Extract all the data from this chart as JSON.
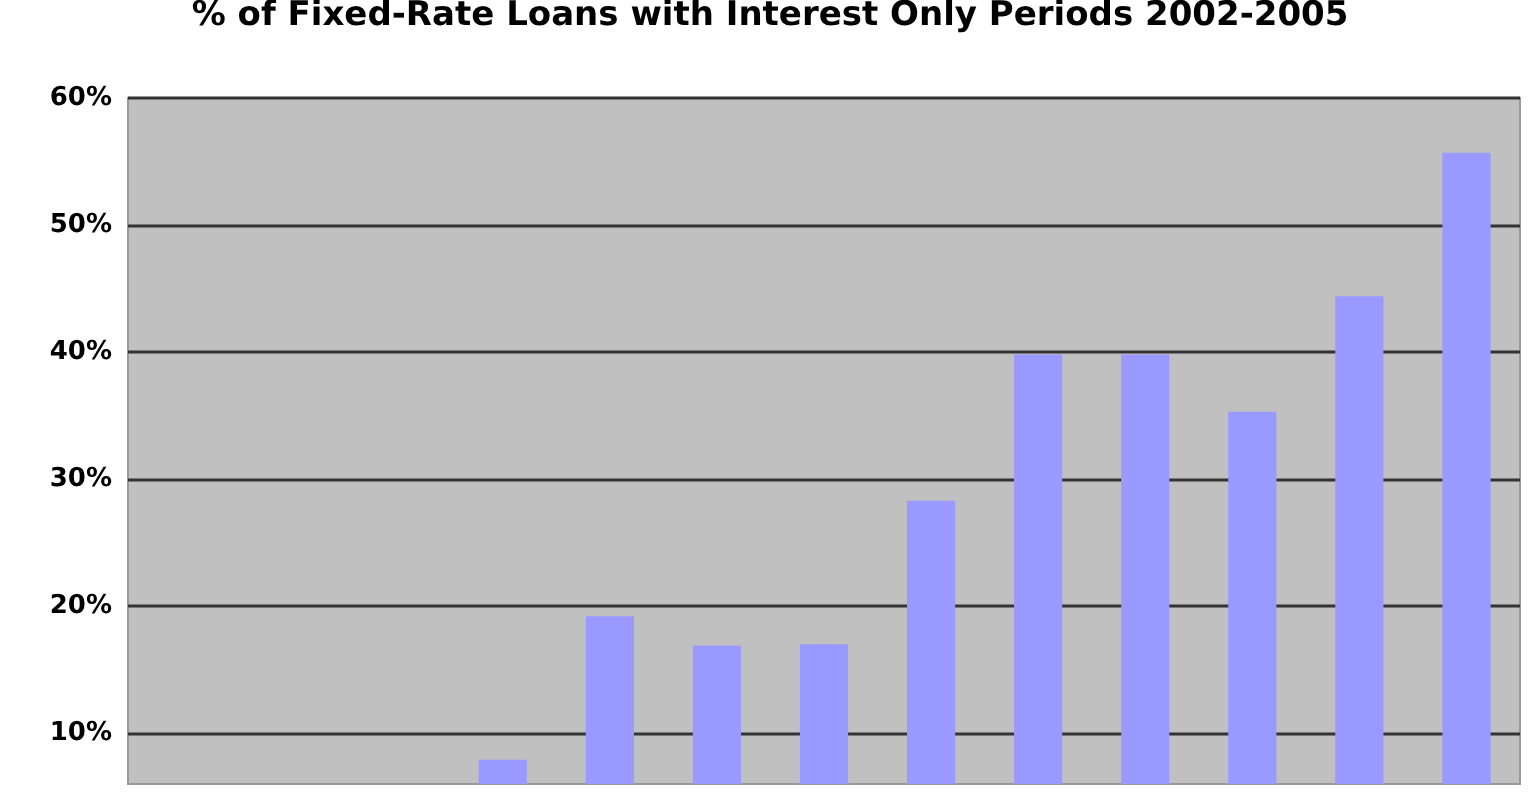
{
  "chart_data": {
    "type": "bar",
    "title": "% of Fixed-Rate Loans with Interest Only Periods 2002-2005",
    "categories": [
      null,
      null,
      null,
      null,
      null,
      null,
      null,
      null,
      null,
      null,
      null,
      null,
      null
    ],
    "values": [
      null,
      null,
      null,
      7.9,
      19.2,
      16.9,
      17,
      28.3,
      39.8,
      39.8,
      35.3,
      44.4,
      55.7
    ],
    "color": "#9999ff",
    "ylim": [
      6,
      60
    ],
    "yticks": [
      {
        "value": 10,
        "label": "10%"
      },
      {
        "value": 20,
        "label": "20%"
      },
      {
        "value": 30,
        "label": "30%"
      },
      {
        "value": 40,
        "label": "40%"
      },
      {
        "value": 50,
        "label": "50%"
      },
      {
        "value": 60,
        "label": "60%"
      }
    ],
    "grid": "y"
  }
}
